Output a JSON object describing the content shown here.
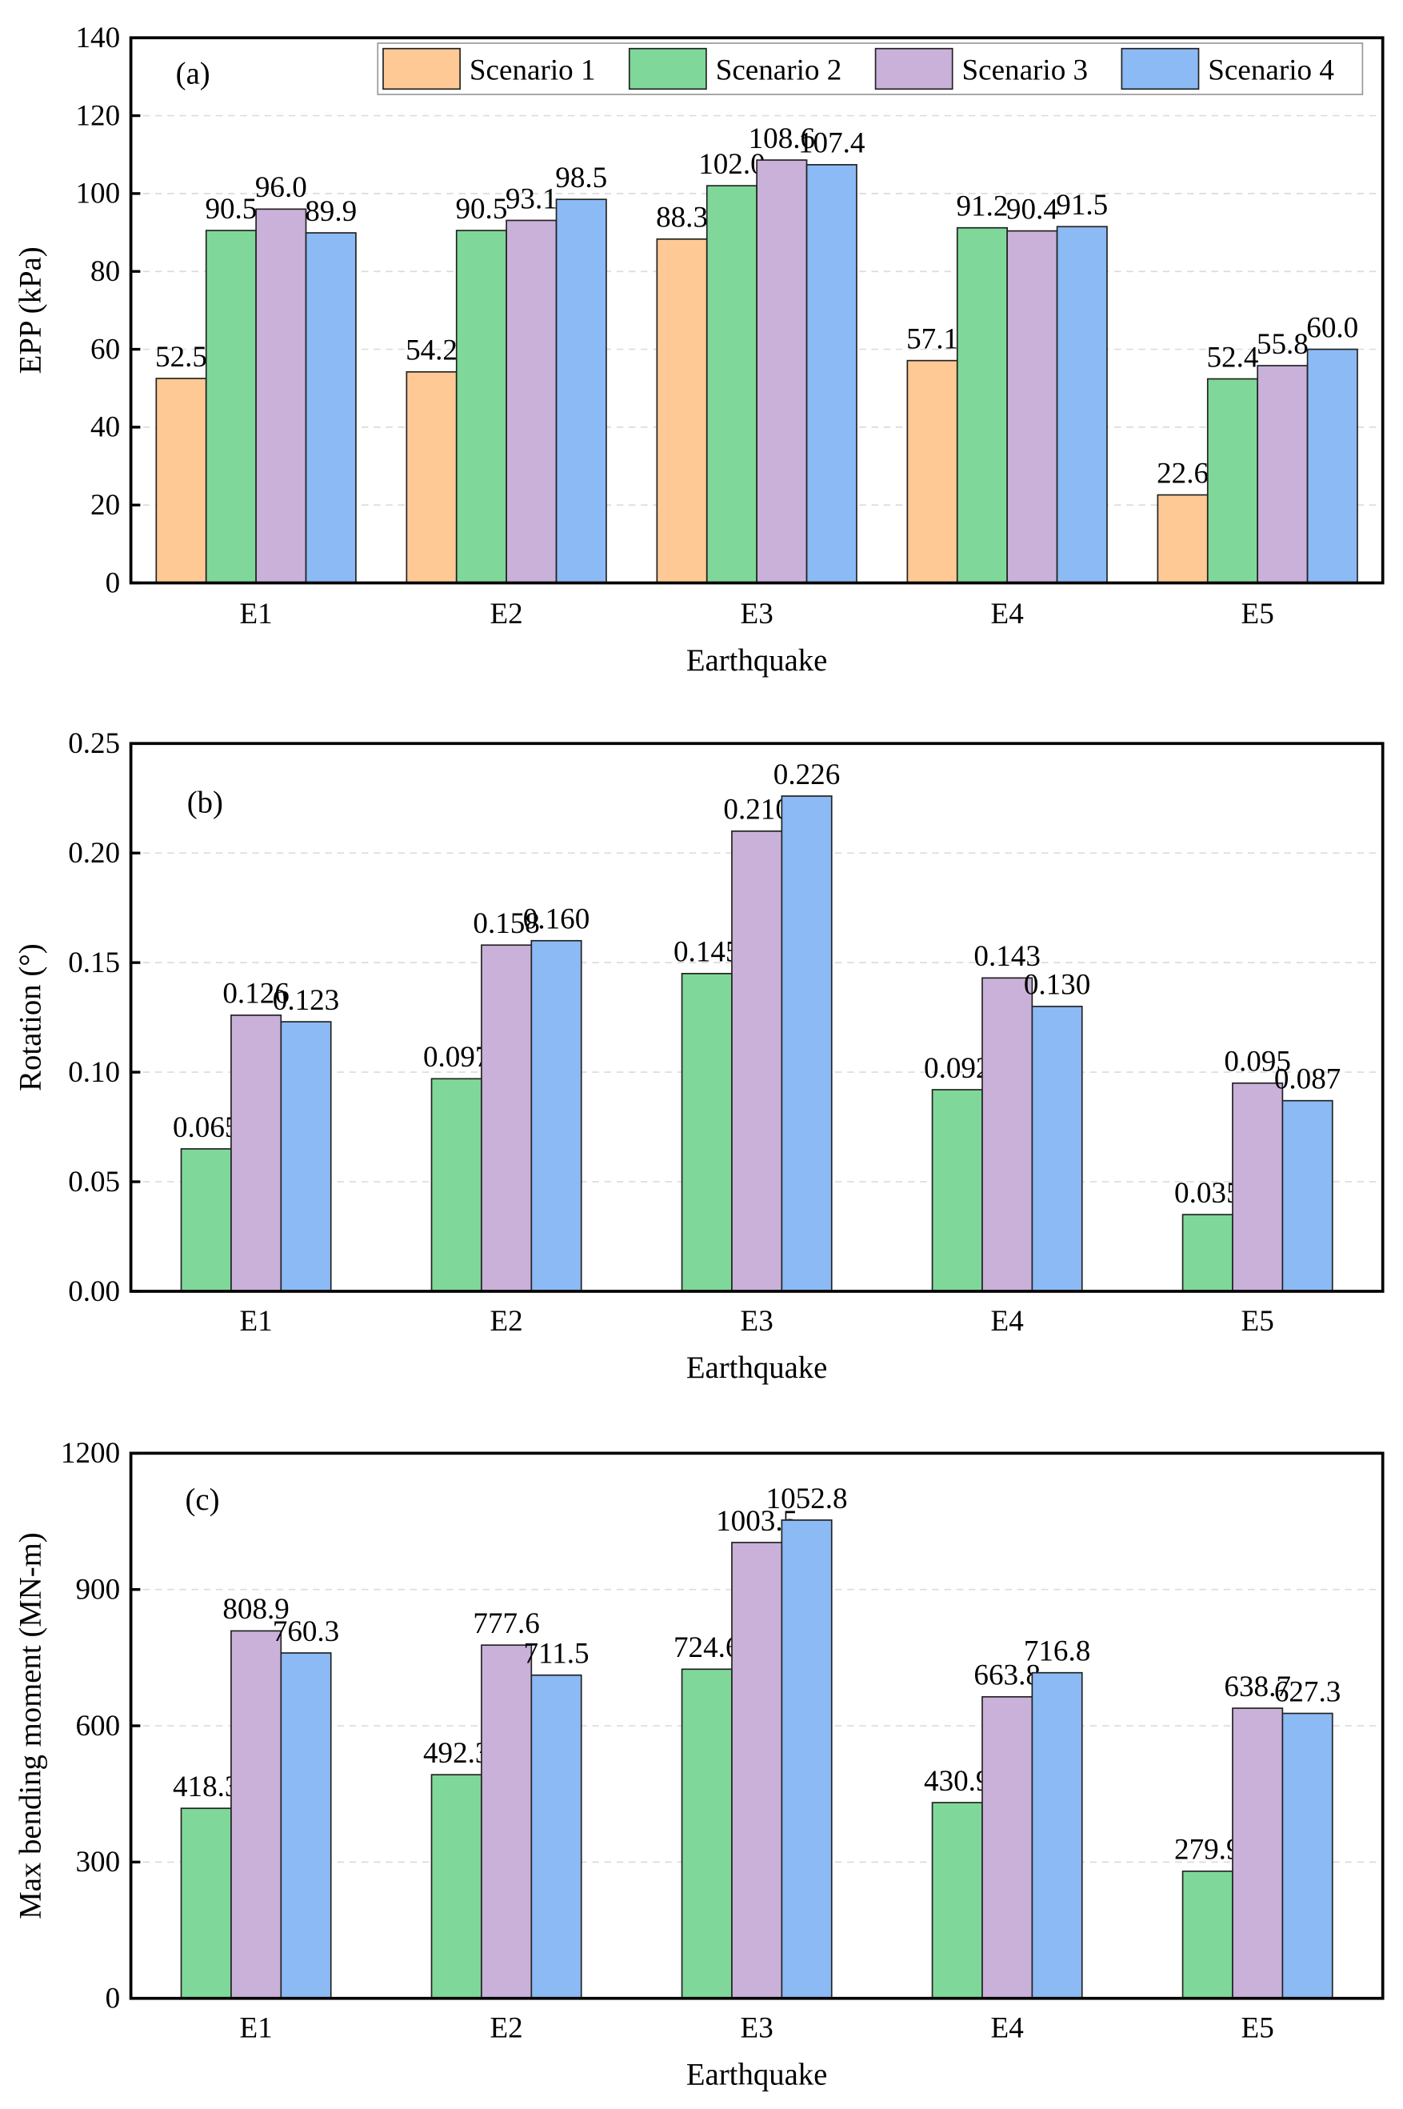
{
  "colors": {
    "Scenario 1": "#fec994",
    "Scenario 2": "#7fd899",
    "Scenario 3": "#c9b1d9",
    "Scenario 4": "#8bbaf4"
  },
  "chart_data": [
    {
      "type": "bar",
      "panel": "(a)",
      "xlabel": "Earthquake",
      "ylabel": "EPP (kPa)",
      "ylim": [
        0,
        140
      ],
      "yticks": [
        "0",
        "20",
        "40",
        "60",
        "80",
        "100",
        "120",
        "140"
      ],
      "grid": true,
      "legend": "top-right",
      "categories": [
        "E1",
        "E2",
        "E3",
        "E4",
        "E5"
      ],
      "series": [
        {
          "name": "Scenario 1",
          "values": [
            52.5,
            54.2,
            88.3,
            57.1,
            22.6
          ],
          "labels": [
            "52.5",
            "54.2",
            "88.3",
            "57.1",
            "22.6"
          ]
        },
        {
          "name": "Scenario 2",
          "values": [
            90.5,
            90.5,
            102.0,
            91.2,
            52.4
          ],
          "labels": [
            "90.5",
            "90.5",
            "102.0",
            "91.2",
            "52.4"
          ]
        },
        {
          "name": "Scenario 3",
          "values": [
            96.0,
            93.1,
            108.6,
            90.4,
            55.8
          ],
          "labels": [
            "96.0",
            "93.1",
            "108.6",
            "90.4",
            "55.8"
          ]
        },
        {
          "name": "Scenario 4",
          "values": [
            89.9,
            98.5,
            107.4,
            91.5,
            60.0
          ],
          "labels": [
            "89.9",
            "98.5",
            "107.4",
            "91.5",
            "60.0"
          ]
        }
      ]
    },
    {
      "type": "bar",
      "panel": "(b)",
      "xlabel": "Earthquake",
      "ylabel": "Rotation (°)",
      "ylim": [
        0,
        0.25
      ],
      "yticks": [
        "0.00",
        "0.05",
        "0.10",
        "0.15",
        "0.20",
        "0.25"
      ],
      "grid": true,
      "categories": [
        "E1",
        "E2",
        "E3",
        "E4",
        "E5"
      ],
      "series": [
        {
          "name": "Scenario 2",
          "values": [
            0.065,
            0.097,
            0.145,
            0.092,
            0.035
          ],
          "labels": [
            "0.065",
            "0.097",
            "0.145",
            "0.092",
            "0.035"
          ]
        },
        {
          "name": "Scenario 3",
          "values": [
            0.126,
            0.158,
            0.21,
            0.143,
            0.095
          ],
          "labels": [
            "0.126",
            "0.158",
            "0.210",
            "0.143",
            "0.095"
          ]
        },
        {
          "name": "Scenario 4",
          "values": [
            0.123,
            0.16,
            0.226,
            0.13,
            0.087
          ],
          "labels": [
            "0.123",
            "0.160",
            "0.226",
            "0.130",
            "0.087"
          ]
        }
      ]
    },
    {
      "type": "bar",
      "panel": "(c)",
      "xlabel": "Earthquake",
      "ylabel": "Max bending moment (MN-m)",
      "ylim": [
        0,
        1200
      ],
      "yticks": [
        "0",
        "300",
        "600",
        "900",
        "1200"
      ],
      "grid": true,
      "categories": [
        "E1",
        "E2",
        "E3",
        "E4",
        "E5"
      ],
      "series": [
        {
          "name": "Scenario 2",
          "values": [
            418.3,
            492.3,
            724.6,
            430.9,
            279.9
          ],
          "labels": [
            "418.3",
            "492.3",
            "724.6",
            "430.9",
            "279.9"
          ]
        },
        {
          "name": "Scenario 3",
          "values": [
            808.9,
            777.6,
            1003.5,
            663.8,
            638.7
          ],
          "labels": [
            "808.9",
            "777.6",
            "1003.5",
            "663.8",
            "638.7"
          ]
        },
        {
          "name": "Scenario 4",
          "values": [
            760.3,
            711.5,
            1052.8,
            716.8,
            627.3
          ],
          "labels": [
            "760.3",
            "711.5",
            "1052.8",
            "716.8",
            "627.3"
          ]
        }
      ]
    }
  ]
}
